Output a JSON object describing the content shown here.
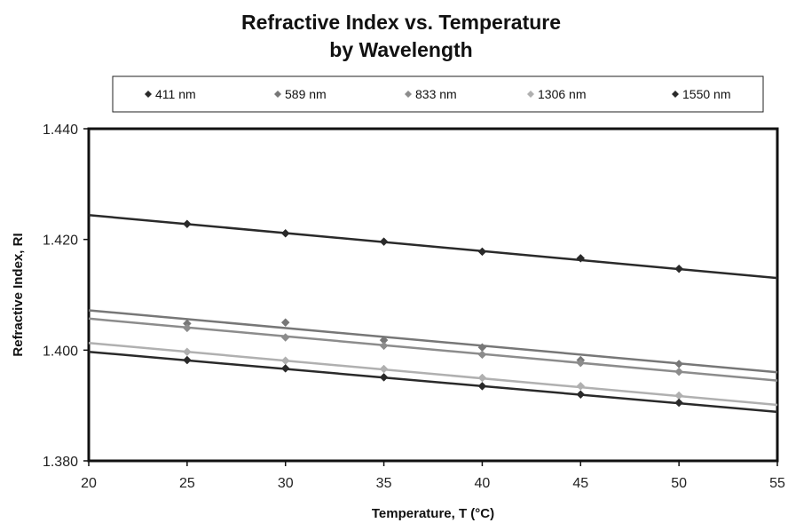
{
  "chart_data": {
    "type": "scatter",
    "title_line1": "Refractive Index vs. Temperature",
    "title_line2": "by Wavelength",
    "xlabel": "Temperature, T (°C)",
    "ylabel": "Refractive Index, RI",
    "xlim": [
      20,
      55
    ],
    "ylim": [
      1.38,
      1.44
    ],
    "x_ticks": [
      "20",
      "25",
      "30",
      "35",
      "40",
      "45",
      "50",
      "55"
    ],
    "y_ticks": [
      "1.380",
      "1.400",
      "1.420",
      "1.440"
    ],
    "legend_position": "top",
    "grid": false,
    "trendlines": true,
    "x": [
      25,
      30,
      35,
      40,
      45,
      50
    ],
    "series": [
      {
        "name": "411 nm",
        "color": "#2a2a2a",
        "values": [
          1.4228,
          1.4211,
          1.4196,
          1.4178,
          1.4166,
          1.4147
        ],
        "fit": {
          "slope": -0.000325,
          "intercept": 1.4309
        }
      },
      {
        "name": "589 nm",
        "color": "#777777",
        "values": [
          1.4048,
          1.405,
          1.4018,
          1.4005,
          1.3982,
          1.3975
        ],
        "fit": {
          "slope": -0.00032,
          "intercept": 1.4136
        }
      },
      {
        "name": "833 nm",
        "color": "#8c8c8c",
        "values": [
          1.404,
          1.4023,
          1.4008,
          1.3992,
          1.3977,
          1.3961
        ],
        "fit": {
          "slope": -0.00032,
          "intercept": 1.4121
        }
      },
      {
        "name": "1306 nm",
        "color": "#b0b0b0",
        "values": [
          1.3997,
          1.3981,
          1.3966,
          1.395,
          1.3935,
          1.3918
        ],
        "fit": {
          "slope": -0.00032,
          "intercept": 1.4077
        }
      },
      {
        "name": "1550 nm",
        "color": "#2a2a2a",
        "values": [
          1.3982,
          1.3967,
          1.3951,
          1.3935,
          1.392,
          1.3905
        ],
        "fit": {
          "slope": -0.00031,
          "intercept": 1.4059
        }
      }
    ]
  }
}
